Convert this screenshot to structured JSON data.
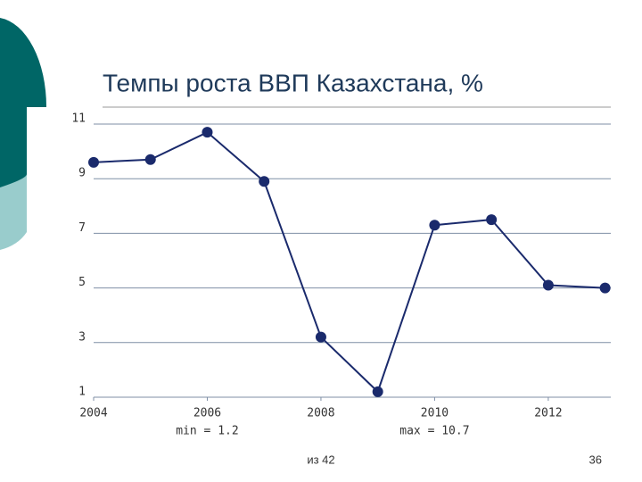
{
  "chart_data": {
    "type": "line",
    "title": "Темпы роста ВВП Казахстана, %",
    "x": [
      2004,
      2005,
      2006,
      2007,
      2008,
      2009,
      2010,
      2011,
      2012,
      2013
    ],
    "values": [
      9.6,
      9.7,
      10.7,
      8.9,
      3.2,
      1.2,
      7.3,
      7.5,
      5.1,
      5.0
    ],
    "color": "#1a2a6c",
    "xlim": [
      2004,
      2013.1
    ],
    "xticks": [
      2004,
      2006,
      2008,
      2010,
      2012
    ],
    "ylim": [
      1,
      11
    ],
    "yticks": [
      1,
      3,
      5,
      7,
      9,
      11
    ],
    "grid": true,
    "annotations": [
      "min = 1.2",
      "max = 10.7"
    ]
  },
  "footer": {
    "source": "из 42",
    "page": "36"
  }
}
